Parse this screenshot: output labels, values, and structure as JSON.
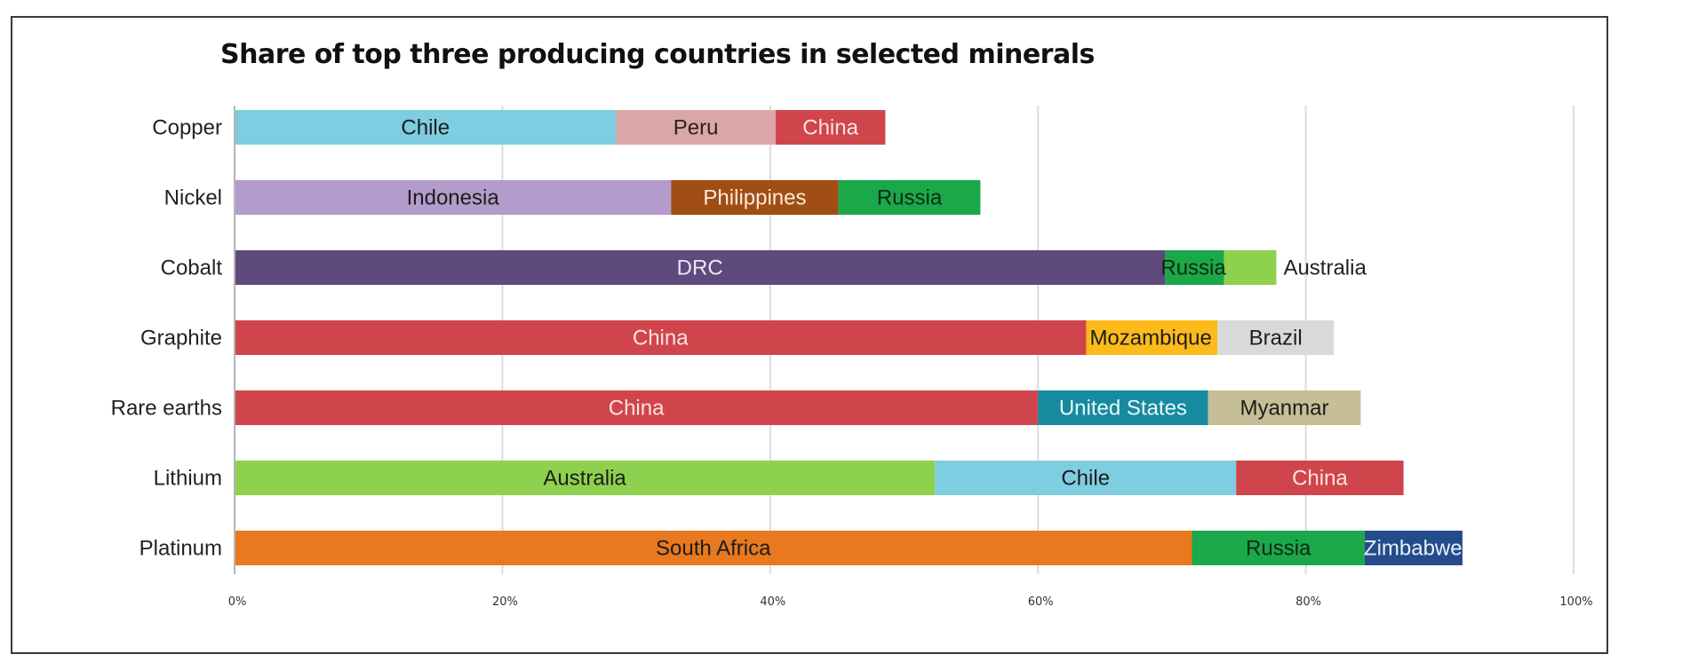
{
  "chart_data": {
    "type": "bar",
    "orientation": "horizontal",
    "stacked": true,
    "title": "Share of top three producing countries in selected minerals",
    "xlabel": "",
    "ylabel": "",
    "xlim": [
      0,
      100
    ],
    "x_ticks": [
      "0%",
      "20%",
      "40%",
      "60%",
      "80%",
      "100%"
    ],
    "x_tick_values": [
      0,
      20,
      40,
      60,
      80,
      100
    ],
    "grid": true,
    "legend": "none",
    "categories": [
      "Copper",
      "Nickel",
      "Cobalt",
      "Graphite",
      "Rare earths",
      "Lithium",
      "Platinum"
    ],
    "rows": [
      {
        "category": "Copper",
        "segments": [
          {
            "country": "Chile",
            "value": 28.5,
            "color": "#7ECDE0",
            "text_color": "#1c1c1c"
          },
          {
            "country": "Peru",
            "value": 11.9,
            "color": "#DBA6A8",
            "text_color": "#2a1f1f"
          },
          {
            "country": "China",
            "value": 8.2,
            "color": "#D0454C",
            "text_color": "#FBE3E3"
          }
        ]
      },
      {
        "category": "Nickel",
        "segments": [
          {
            "country": "Indonesia",
            "value": 32.6,
            "color": "#B39BCB",
            "text_color": "#1c1c1c"
          },
          {
            "country": "Philippines",
            "value": 12.5,
            "color": "#A04E14",
            "text_color": "#FBE9D8"
          },
          {
            "country": "Russia",
            "value": 10.6,
            "color": "#1BA84A",
            "text_color": "#0d2a12"
          }
        ]
      },
      {
        "category": "Cobalt",
        "segments": [
          {
            "country": "DRC",
            "value": 69.5,
            "color": "#5E4A7D",
            "text_color": "#EDE6F5"
          },
          {
            "country": "Russia",
            "value": 4.4,
            "color": "#1BA84A",
            "text_color": "#0d2a12"
          },
          {
            "country": "Australia",
            "value": 3.9,
            "color": "#8ED14F",
            "text_color": "#222222",
            "label_outside": true
          }
        ]
      },
      {
        "category": "Graphite",
        "segments": [
          {
            "country": "China",
            "value": 63.6,
            "color": "#D0454C",
            "text_color": "#FBE3E3"
          },
          {
            "country": "Mozambique",
            "value": 9.8,
            "color": "#FCBB1A",
            "text_color": "#1c1c1c"
          },
          {
            "country": "Brazil",
            "value": 8.7,
            "color": "#D9D9D9",
            "text_color": "#1c1c1c"
          }
        ]
      },
      {
        "category": "Rare earths",
        "segments": [
          {
            "country": "China",
            "value": 60.0,
            "color": "#D0454C",
            "text_color": "#FBE3E3"
          },
          {
            "country": "United States",
            "value": 12.7,
            "color": "#168A9E",
            "text_color": "#EAF7FA"
          },
          {
            "country": "Myanmar",
            "value": 11.4,
            "color": "#C7BE97",
            "text_color": "#1c1c1c"
          }
        ]
      },
      {
        "category": "Lithium",
        "segments": [
          {
            "country": "Australia",
            "value": 52.3,
            "color": "#8ED14F",
            "text_color": "#1c1c1c"
          },
          {
            "country": "Chile",
            "value": 22.5,
            "color": "#7ECDE0",
            "text_color": "#1c1c1c"
          },
          {
            "country": "China",
            "value": 12.5,
            "color": "#D0454C",
            "text_color": "#FBE3E3"
          }
        ]
      },
      {
        "category": "Platinum",
        "segments": [
          {
            "country": "South Africa",
            "value": 71.5,
            "color": "#E9791E",
            "text_color": "#1c1c1c"
          },
          {
            "country": "Russia",
            "value": 12.9,
            "color": "#1BA84A",
            "text_color": "#0d2a12"
          },
          {
            "country": "Zimbabwe",
            "value": 7.3,
            "color": "#244C8A",
            "text_color": "#EAF0FA"
          }
        ]
      }
    ]
  }
}
